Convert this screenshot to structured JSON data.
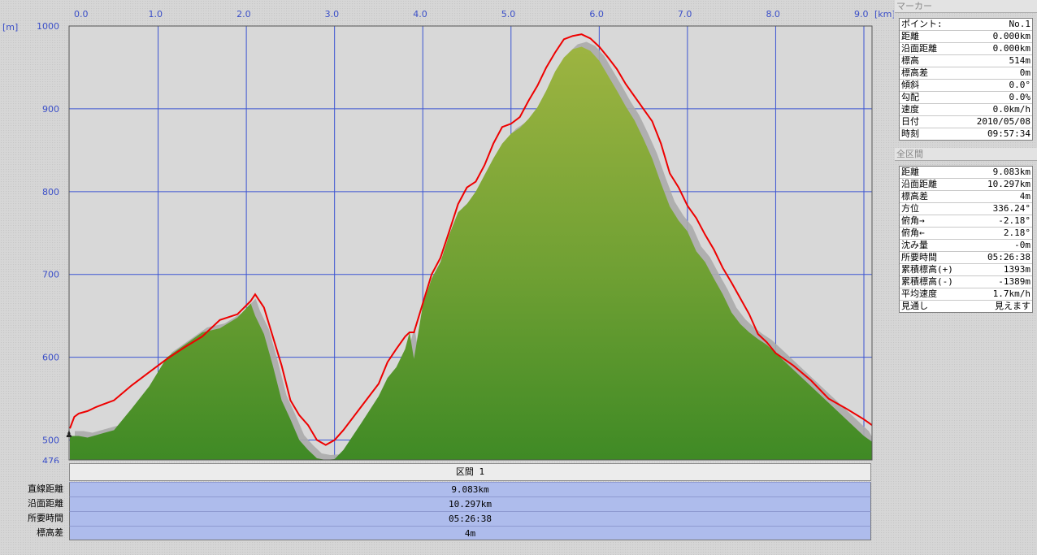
{
  "chart_data": {
    "type": "area",
    "xunit": "[km]",
    "yunit": "[m]",
    "xlim": [
      0,
      9.0
    ],
    "ylim": [
      476,
      1000
    ],
    "xticks": [
      "0.0",
      "1.0",
      "2.0",
      "3.0",
      "4.0",
      "5.0",
      "6.0",
      "7.0",
      "8.0",
      "9.0"
    ],
    "yticks": [
      "1000",
      "900",
      "800",
      "700",
      "600",
      "500",
      "476"
    ],
    "grid": true,
    "colors": {
      "terrain": "#5f9a2e",
      "terrain_top": "#9db441",
      "track": "#ee0000",
      "shadow": "#ababab",
      "grid": "#3c55d2",
      "plot_bg": "#d8d8d8"
    },
    "series": [
      {
        "values": {
          "x": [
            0.0,
            0.1,
            0.2,
            0.5,
            0.7,
            0.9,
            1.1,
            1.3,
            1.5,
            1.7,
            1.9,
            2.05,
            2.1,
            2.2,
            2.3,
            2.4,
            2.5,
            2.6,
            2.7,
            2.8,
            2.9,
            3.0,
            3.1,
            3.3,
            3.5,
            3.6,
            3.7,
            3.8,
            3.85,
            3.9,
            4.0,
            4.1,
            4.2,
            4.3,
            4.4,
            4.5,
            4.6,
            4.7,
            4.8,
            4.9,
            5.0,
            5.1,
            5.2,
            5.3,
            5.4,
            5.5,
            5.6,
            5.7,
            5.8,
            5.9,
            6.0,
            6.1,
            6.2,
            6.3,
            6.4,
            6.5,
            6.6,
            6.7,
            6.8,
            6.9,
            7.0,
            7.1,
            7.2,
            7.3,
            7.4,
            7.5,
            7.6,
            7.7,
            7.8,
            7.9,
            8.0,
            8.2,
            8.4,
            8.6,
            8.8,
            9.0,
            9.1
          ],
          "y": [
            505,
            505,
            503,
            512,
            538,
            565,
            600,
            615,
            630,
            635,
            648,
            665,
            650,
            628,
            590,
            548,
            525,
            500,
            488,
            478,
            476,
            477,
            488,
            520,
            553,
            575,
            588,
            610,
            630,
            598,
            663,
            695,
            715,
            748,
            775,
            785,
            800,
            820,
            840,
            858,
            870,
            877,
            888,
            902,
            922,
            945,
            962,
            972,
            975,
            970,
            958,
            940,
            922,
            903,
            886,
            864,
            840,
            810,
            782,
            765,
            752,
            728,
            715,
            695,
            676,
            654,
            640,
            630,
            622,
            615,
            605,
            585,
            565,
            545,
            525,
            505,
            498
          ]
        }
      },
      {
        "values": {
          "x": [
            0.0,
            0.05,
            0.1,
            0.2,
            0.3,
            0.5,
            0.7,
            0.9,
            1.1,
            1.3,
            1.5,
            1.7,
            1.9,
            2.05,
            2.1,
            2.2,
            2.3,
            2.4,
            2.5,
            2.6,
            2.7,
            2.8,
            2.9,
            3.0,
            3.1,
            3.3,
            3.5,
            3.6,
            3.7,
            3.8,
            3.85,
            3.9,
            4.0,
            4.1,
            4.2,
            4.3,
            4.4,
            4.5,
            4.6,
            4.7,
            4.8,
            4.9,
            5.0,
            5.1,
            5.2,
            5.3,
            5.4,
            5.5,
            5.6,
            5.7,
            5.8,
            5.9,
            6.0,
            6.1,
            6.2,
            6.3,
            6.4,
            6.5,
            6.6,
            6.7,
            6.8,
            6.9,
            7.0,
            7.1,
            7.2,
            7.3,
            7.4,
            7.5,
            7.6,
            7.7,
            7.8,
            7.9,
            8.0,
            8.2,
            8.4,
            8.6,
            8.8,
            9.0,
            9.1
          ],
          "y": [
            514,
            528,
            532,
            535,
            540,
            548,
            566,
            582,
            598,
            612,
            625,
            645,
            652,
            668,
            676,
            660,
            625,
            590,
            548,
            530,
            518,
            500,
            494,
            500,
            512,
            540,
            568,
            594,
            610,
            625,
            630,
            630,
            665,
            700,
            720,
            752,
            785,
            805,
            812,
            832,
            858,
            878,
            882,
            890,
            910,
            928,
            950,
            968,
            984,
            988,
            990,
            985,
            975,
            962,
            948,
            930,
            915,
            900,
            885,
            858,
            822,
            805,
            783,
            768,
            748,
            730,
            708,
            690,
            671,
            652,
            628,
            618,
            605,
            590,
            572,
            550,
            538,
            525,
            518
          ]
        }
      }
    ]
  },
  "section": {
    "header": "区間 1",
    "rows": [
      {
        "label": "直線距離",
        "value": "9.083km"
      },
      {
        "label": "沿面距離",
        "value": "10.297km"
      },
      {
        "label": "所要時間",
        "value": "05:26:38"
      },
      {
        "label": "標高差",
        "value": "4m"
      }
    ]
  },
  "marker_panel": {
    "title": "マーカー",
    "rows": [
      {
        "label": "ポイント:",
        "value": "No.1"
      },
      {
        "label": "距離",
        "value": "0.000km"
      },
      {
        "label": "沿面距離",
        "value": "0.000km"
      },
      {
        "label": "標高",
        "value": "514m"
      },
      {
        "label": "標高差",
        "value": "0m"
      },
      {
        "label": "傾斜",
        "value": "0.0°"
      },
      {
        "label": "勾配",
        "value": "0.0%"
      },
      {
        "label": "速度",
        "value": "0.0km/h"
      },
      {
        "label": "日付",
        "value": "2010/05/08"
      },
      {
        "label": "時刻",
        "value": "09:57:34"
      }
    ]
  },
  "all_panel": {
    "title": "全区間",
    "rows": [
      {
        "label": "距離",
        "value": "9.083km"
      },
      {
        "label": "沿面距離",
        "value": "10.297km"
      },
      {
        "label": "標高差",
        "value": "4m"
      },
      {
        "label": "方位",
        "value": "336.24°"
      },
      {
        "label": "俯角→",
        "value": "-2.18°"
      },
      {
        "label": "俯角←",
        "value": "2.18°"
      },
      {
        "label": "沈み量",
        "value": "-0m"
      },
      {
        "label": "所要時間",
        "value": "05:26:38"
      },
      {
        "label": "累積標高(+)",
        "value": "1393m"
      },
      {
        "label": "累積標高(-)",
        "value": "-1389m"
      },
      {
        "label": "平均速度",
        "value": "1.7km/h"
      },
      {
        "label": "見通し",
        "value": "見えます"
      }
    ]
  }
}
